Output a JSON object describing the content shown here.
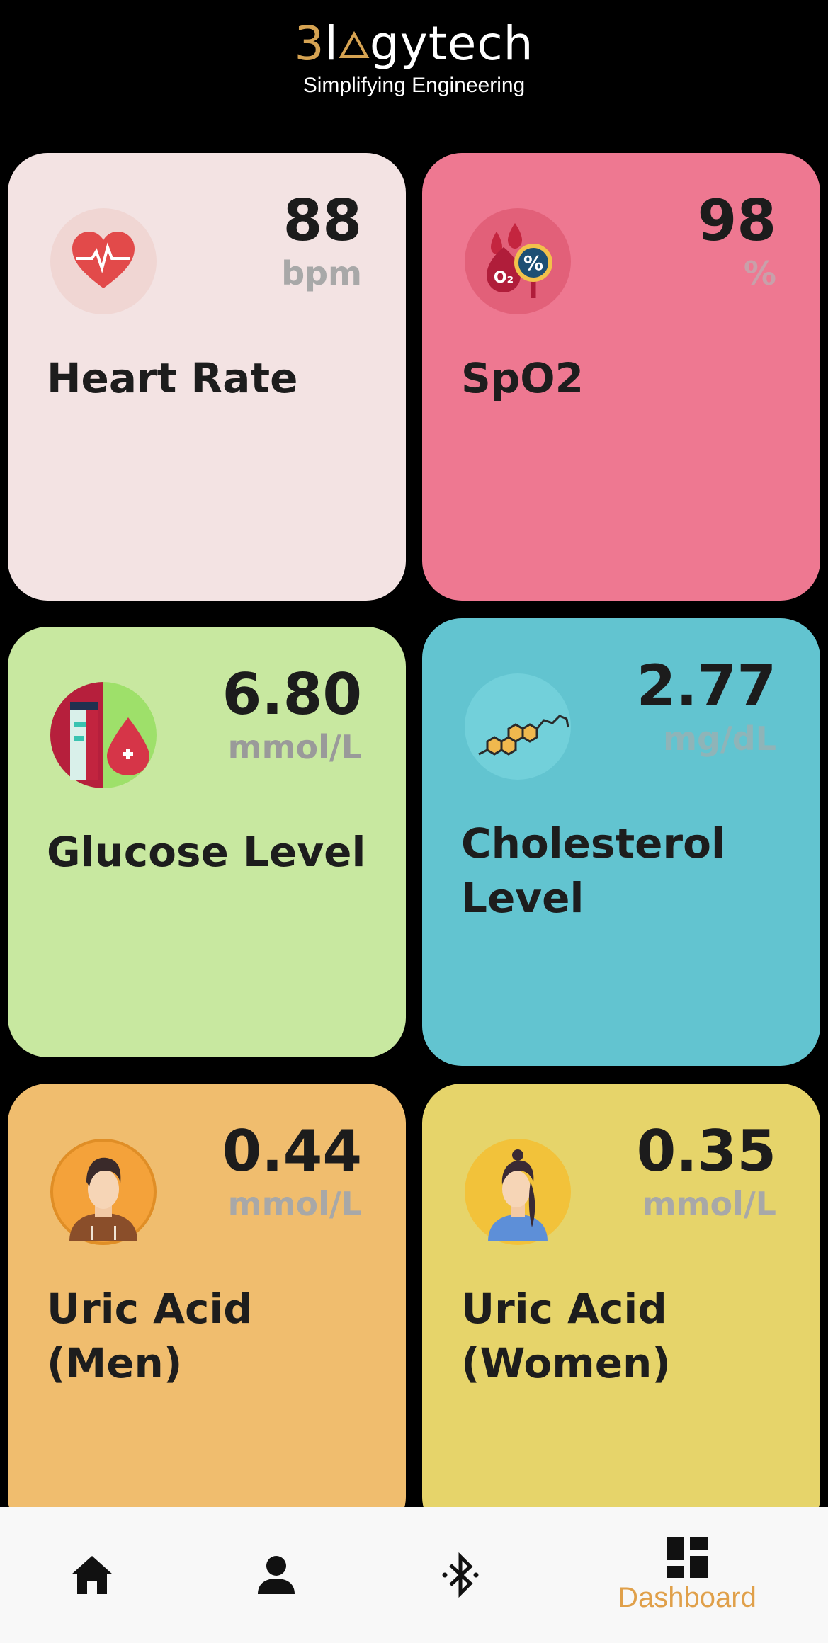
{
  "header": {
    "logo_prefix": "3l",
    "logo_suffix": "gytech",
    "tagline": "Simplifying Engineering"
  },
  "cards": [
    {
      "value": "88",
      "unit": "bpm",
      "title": "Heart Rate",
      "bg": "#f3e3e3",
      "icon": "heart-rate-icon"
    },
    {
      "value": "98",
      "unit": "%",
      "title": "SpO2",
      "bg": "#ee7891",
      "icon": "oxygen-drop-icon"
    },
    {
      "value": "6.80",
      "unit": "mmol/L",
      "title": "Glucose Level",
      "bg": "#c8e8a0",
      "icon": "glucose-blood-icon"
    },
    {
      "value": "2.77",
      "unit": "mg/dL",
      "title": "Cholesterol Level",
      "bg": "#62c4d0",
      "icon": "molecule-icon"
    },
    {
      "value": "0.44",
      "unit": "mmol/L",
      "title": "Uric Acid (Men)",
      "bg": "#f0bd6e",
      "icon": "man-avatar-icon"
    },
    {
      "value": "0.35",
      "unit": "mmol/L",
      "title": "Uric Acid (Women)",
      "bg": "#e6d46a",
      "icon": "woman-avatar-icon"
    }
  ],
  "nav": {
    "items": [
      {
        "icon": "home-icon",
        "label": ""
      },
      {
        "icon": "person-icon",
        "label": ""
      },
      {
        "icon": "bluetooth-icon",
        "label": ""
      },
      {
        "icon": "dashboard-icon",
        "label": "Dashboard"
      }
    ],
    "active_color": "#e0a04a"
  }
}
